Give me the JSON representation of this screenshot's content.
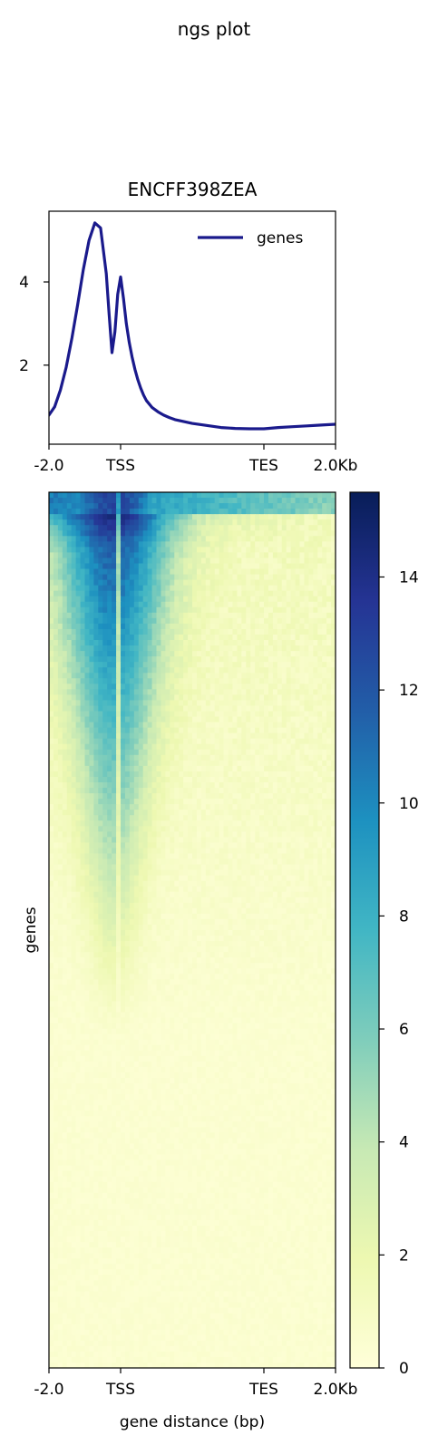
{
  "suptitle": "ngs plot",
  "chart_data": [
    {
      "type": "line",
      "title": "ENCFF398ZEA",
      "xlabel": "",
      "ylabel": "",
      "x_tick_labels": [
        "-2.0",
        "TSS",
        "TES",
        "2.0Kb"
      ],
      "y_ticks": [
        2,
        4
      ],
      "ylim": [
        0.1,
        5.7
      ],
      "grid": false,
      "legend": "top-right",
      "series": [
        {
          "name": "genes",
          "color": "#1a1a8c",
          "x": [
            0,
            2,
            4,
            6,
            8,
            10,
            12,
            14,
            16,
            18,
            20,
            21,
            22,
            23,
            24,
            25,
            26,
            27,
            28,
            29,
            30,
            31,
            32,
            33,
            34,
            36,
            38,
            40,
            42,
            44,
            46,
            48,
            50,
            55,
            60,
            65,
            70,
            75,
            80,
            85,
            90,
            95,
            100
          ],
          "values": [
            0.8,
            1.0,
            1.4,
            1.95,
            2.65,
            3.45,
            4.3,
            5.0,
            5.42,
            5.3,
            4.2,
            3.2,
            2.3,
            2.8,
            3.7,
            4.12,
            3.6,
            3.0,
            2.55,
            2.2,
            1.9,
            1.65,
            1.45,
            1.28,
            1.15,
            0.98,
            0.88,
            0.8,
            0.74,
            0.69,
            0.66,
            0.63,
            0.6,
            0.55,
            0.5,
            0.48,
            0.47,
            0.47,
            0.5,
            0.52,
            0.54,
            0.56,
            0.58
          ]
        }
      ]
    },
    {
      "type": "heatmap",
      "xlabel": "gene distance (bp)",
      "ylabel": "genes",
      "x_tick_labels": [
        "-2.0",
        "TSS",
        "TES",
        "2.0Kb"
      ],
      "colorbar": {
        "ticks": [
          0,
          2,
          4,
          6,
          8,
          10,
          12,
          14
        ],
        "range": [
          0,
          15.5
        ],
        "colormap": "YlGnBu",
        "colors": [
          "#ffffd9",
          "#edf8b1",
          "#c7e9b4",
          "#7fcdbb",
          "#41b6c4",
          "#1d91c0",
          "#225ea8",
          "#253494",
          "#081d58"
        ]
      },
      "rows_sorted_descending": true
    }
  ]
}
